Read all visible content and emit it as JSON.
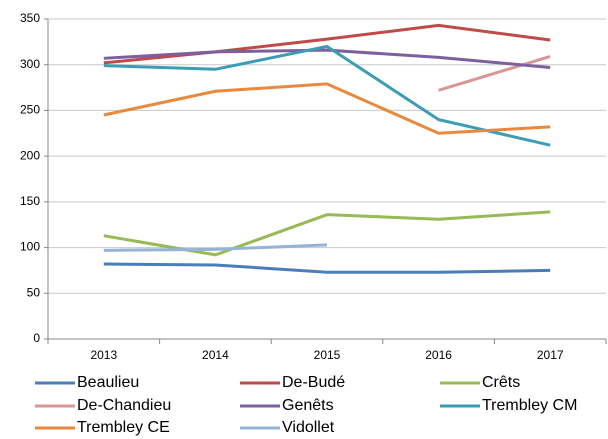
{
  "chart_data": {
    "type": "line",
    "categories": [
      "2013",
      "2014",
      "2015",
      "2016",
      "2017"
    ],
    "series": [
      {
        "name": "Beaulieu",
        "color": "#4a7ebb",
        "values": [
          82,
          81,
          73,
          73,
          75
        ]
      },
      {
        "name": "De-Budé",
        "color": "#be4b48",
        "values": [
          302,
          314,
          328,
          343,
          327
        ]
      },
      {
        "name": "Crêts",
        "color": "#98b954",
        "values": [
          113,
          92,
          136,
          131,
          139
        ]
      },
      {
        "name": "De-Chandieu",
        "color": "#d99694",
        "values": [
          null,
          null,
          null,
          272,
          309
        ]
      },
      {
        "name": "Genêts",
        "color": "#7d5fa0",
        "values": [
          307,
          314,
          316,
          308,
          297
        ]
      },
      {
        "name": "Trembley CM",
        "color": "#3d9cb5",
        "values": [
          299,
          295,
          320,
          240,
          212
        ]
      },
      {
        "name": "Trembley CE",
        "color": "#e9893d",
        "values": [
          245,
          271,
          279,
          225,
          232
        ]
      },
      {
        "name": "Vidollet",
        "color": "#95b3d7",
        "values": [
          97,
          98,
          103,
          null,
          null
        ]
      }
    ],
    "ylim": [
      0,
      350
    ],
    "yticks": [
      0,
      50,
      100,
      150,
      200,
      250,
      300,
      350
    ],
    "grid": true
  }
}
